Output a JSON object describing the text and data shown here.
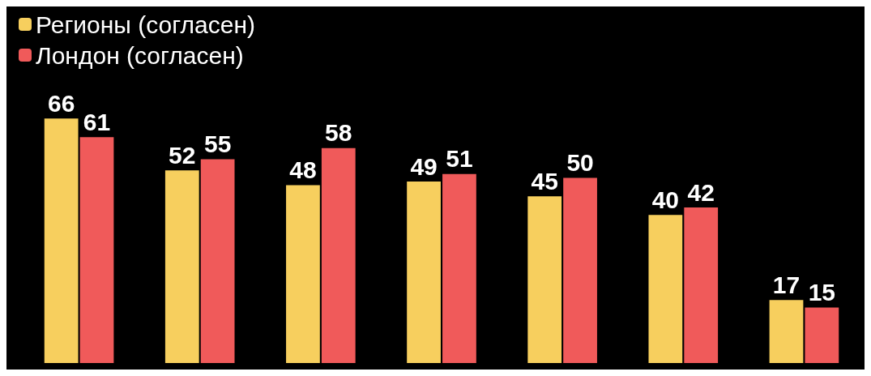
{
  "chart_data": {
    "type": "bar",
    "categories": [
      null,
      null,
      null,
      null,
      null,
      null,
      null
    ],
    "series": [
      {
        "name": "Регионы (согласен)",
        "color": "#f7cf5e",
        "values": [
          66,
          52,
          48,
          49,
          45,
          40,
          17
        ]
      },
      {
        "name": "Лондон (согласен)",
        "color": "#f05a5a",
        "values": [
          61,
          55,
          58,
          51,
          50,
          42,
          15
        ]
      }
    ],
    "data_labels": true,
    "legend": "top left"
  }
}
